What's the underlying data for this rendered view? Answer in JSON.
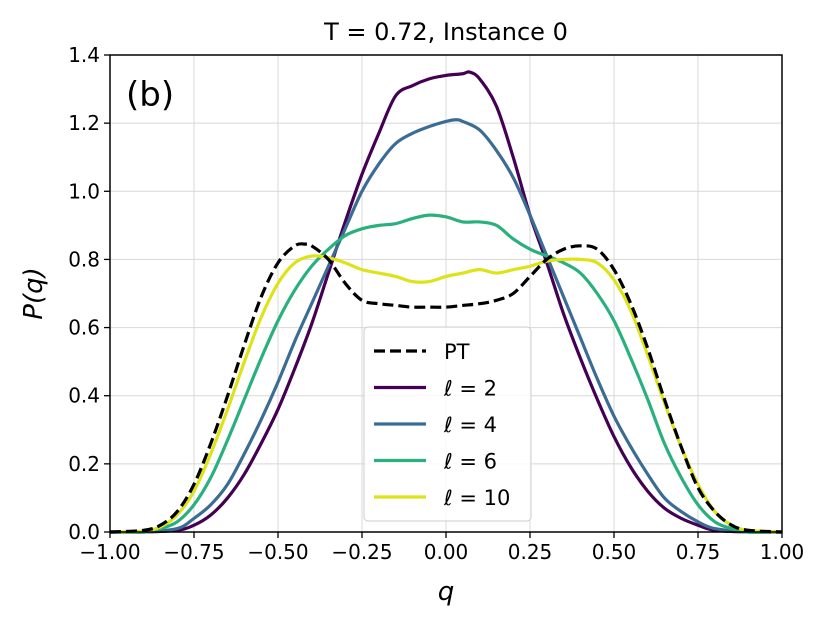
{
  "chart_data": {
    "type": "line",
    "title": "T = 0.72, Instance 0",
    "panel_label": "(b)",
    "xlabel": "q",
    "ylabel": "P(q)",
    "xlim": [
      -1.0,
      1.0
    ],
    "ylim": [
      0.0,
      1.4
    ],
    "xticks": [
      -1.0,
      -0.75,
      -0.5,
      -0.25,
      0.0,
      0.25,
      0.5,
      0.75,
      1.0
    ],
    "xtick_labels": [
      "−1.00",
      "−0.75",
      "−0.50",
      "−0.25",
      "0.00",
      "0.25",
      "0.50",
      "0.75",
      "1.00"
    ],
    "yticks": [
      0.0,
      0.2,
      0.4,
      0.6,
      0.8,
      1.0,
      1.2,
      1.4
    ],
    "ytick_labels": [
      "0.0",
      "0.2",
      "0.4",
      "0.6",
      "0.8",
      "1.0",
      "1.2",
      "1.4"
    ],
    "grid": true,
    "legend_position": "lower-center",
    "series": [
      {
        "name": "PT",
        "color": "#000000",
        "dash": "dashed",
        "x": [
          -1.0,
          -0.9,
          -0.85,
          -0.8,
          -0.75,
          -0.7,
          -0.65,
          -0.6,
          -0.55,
          -0.5,
          -0.45,
          -0.42,
          -0.4,
          -0.35,
          -0.3,
          -0.25,
          -0.2,
          -0.15,
          -0.1,
          -0.05,
          0.0,
          0.05,
          0.1,
          0.15,
          0.2,
          0.25,
          0.3,
          0.35,
          0.4,
          0.45,
          0.5,
          0.55,
          0.6,
          0.65,
          0.7,
          0.75,
          0.8,
          0.85,
          0.9,
          1.0
        ],
        "y": [
          0.0,
          0.005,
          0.02,
          0.06,
          0.14,
          0.26,
          0.4,
          0.55,
          0.69,
          0.79,
          0.84,
          0.845,
          0.84,
          0.8,
          0.73,
          0.68,
          0.67,
          0.665,
          0.66,
          0.66,
          0.66,
          0.665,
          0.67,
          0.68,
          0.7,
          0.75,
          0.8,
          0.83,
          0.84,
          0.83,
          0.77,
          0.67,
          0.54,
          0.39,
          0.25,
          0.13,
          0.06,
          0.02,
          0.005,
          0.0
        ]
      },
      {
        "name": "ℓ = 2",
        "color": "#440154",
        "dash": "solid",
        "x": [
          -1.0,
          -0.9,
          -0.8,
          -0.75,
          -0.7,
          -0.65,
          -0.6,
          -0.55,
          -0.5,
          -0.45,
          -0.4,
          -0.35,
          -0.3,
          -0.25,
          -0.2,
          -0.15,
          -0.1,
          -0.05,
          0.0,
          0.05,
          0.07,
          0.1,
          0.15,
          0.2,
          0.25,
          0.3,
          0.35,
          0.4,
          0.45,
          0.5,
          0.55,
          0.6,
          0.65,
          0.7,
          0.75,
          0.8,
          0.9,
          1.0
        ],
        "y": [
          0.0,
          0.0,
          0.005,
          0.02,
          0.05,
          0.1,
          0.17,
          0.26,
          0.36,
          0.48,
          0.61,
          0.76,
          0.91,
          1.05,
          1.17,
          1.28,
          1.31,
          1.33,
          1.34,
          1.345,
          1.35,
          1.33,
          1.25,
          1.1,
          0.93,
          0.79,
          0.64,
          0.51,
          0.39,
          0.28,
          0.19,
          0.12,
          0.07,
          0.04,
          0.02,
          0.005,
          0.0,
          0.0
        ]
      },
      {
        "name": "ℓ = 4",
        "color": "#3b6c94",
        "dash": "solid",
        "x": [
          -1.0,
          -0.9,
          -0.8,
          -0.75,
          -0.7,
          -0.65,
          -0.6,
          -0.55,
          -0.5,
          -0.45,
          -0.4,
          -0.35,
          -0.3,
          -0.25,
          -0.2,
          -0.15,
          -0.1,
          -0.05,
          0.0,
          0.03,
          0.05,
          0.1,
          0.15,
          0.2,
          0.25,
          0.3,
          0.35,
          0.4,
          0.45,
          0.5,
          0.55,
          0.6,
          0.65,
          0.7,
          0.75,
          0.8,
          0.9,
          1.0
        ],
        "y": [
          0.0,
          0.0,
          0.01,
          0.04,
          0.08,
          0.14,
          0.23,
          0.33,
          0.44,
          0.56,
          0.67,
          0.78,
          0.89,
          1.0,
          1.08,
          1.14,
          1.17,
          1.19,
          1.205,
          1.21,
          1.205,
          1.18,
          1.12,
          1.04,
          0.93,
          0.81,
          0.69,
          0.57,
          0.45,
          0.34,
          0.25,
          0.17,
          0.1,
          0.06,
          0.03,
          0.01,
          0.0,
          0.0
        ]
      },
      {
        "name": "ℓ = 6",
        "color": "#2ab07f",
        "dash": "solid",
        "x": [
          -1.0,
          -0.9,
          -0.85,
          -0.8,
          -0.75,
          -0.7,
          -0.65,
          -0.6,
          -0.55,
          -0.5,
          -0.45,
          -0.4,
          -0.35,
          -0.3,
          -0.25,
          -0.2,
          -0.15,
          -0.1,
          -0.05,
          0.0,
          0.05,
          0.1,
          0.15,
          0.2,
          0.25,
          0.3,
          0.35,
          0.4,
          0.45,
          0.5,
          0.55,
          0.6,
          0.65,
          0.7,
          0.75,
          0.8,
          0.85,
          0.9,
          1.0
        ],
        "y": [
          0.0,
          0.0,
          0.01,
          0.03,
          0.08,
          0.16,
          0.27,
          0.39,
          0.51,
          0.62,
          0.71,
          0.78,
          0.83,
          0.87,
          0.89,
          0.9,
          0.905,
          0.92,
          0.93,
          0.925,
          0.91,
          0.91,
          0.9,
          0.86,
          0.83,
          0.81,
          0.79,
          0.76,
          0.7,
          0.62,
          0.51,
          0.39,
          0.26,
          0.16,
          0.08,
          0.03,
          0.01,
          0.0,
          0.0
        ]
      },
      {
        "name": "ℓ = 10",
        "color": "#dde318",
        "dash": "solid",
        "x": [
          -1.0,
          -0.9,
          -0.85,
          -0.8,
          -0.75,
          -0.7,
          -0.65,
          -0.6,
          -0.55,
          -0.5,
          -0.45,
          -0.4,
          -0.35,
          -0.3,
          -0.25,
          -0.2,
          -0.15,
          -0.1,
          -0.05,
          0.0,
          0.05,
          0.1,
          0.15,
          0.2,
          0.25,
          0.3,
          0.35,
          0.4,
          0.45,
          0.5,
          0.55,
          0.6,
          0.65,
          0.7,
          0.75,
          0.8,
          0.85,
          0.9,
          1.0
        ],
        "y": [
          0.0,
          0.003,
          0.015,
          0.05,
          0.12,
          0.23,
          0.36,
          0.5,
          0.63,
          0.73,
          0.79,
          0.81,
          0.805,
          0.79,
          0.77,
          0.76,
          0.75,
          0.735,
          0.735,
          0.75,
          0.76,
          0.77,
          0.76,
          0.77,
          0.78,
          0.795,
          0.8,
          0.8,
          0.79,
          0.74,
          0.65,
          0.52,
          0.38,
          0.25,
          0.14,
          0.06,
          0.02,
          0.005,
          0.0
        ]
      }
    ]
  }
}
